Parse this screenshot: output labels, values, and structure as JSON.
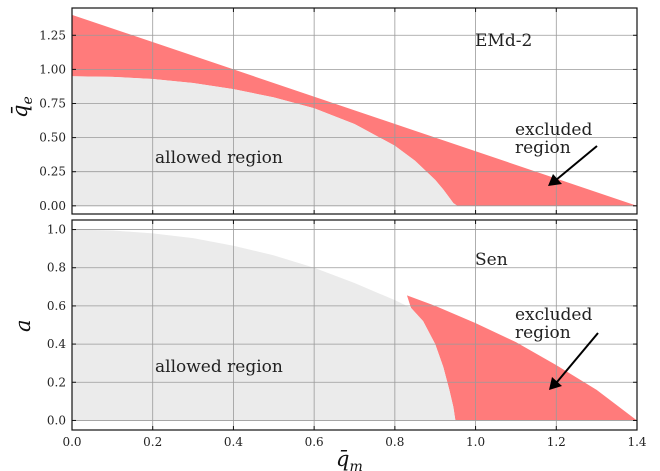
{
  "chart_data": [
    {
      "type": "area",
      "label": "EMd-2",
      "ylabel": "q̄",
      "ylabel_sub": "e",
      "xlim": [
        0,
        1.4
      ],
      "ylim": [
        -0.06,
        1.45
      ],
      "x_ticks": [
        0.0,
        0.2,
        0.4,
        0.6,
        0.8,
        1.0,
        1.2,
        1.4
      ],
      "y_ticks": [
        "0.00",
        "0.25",
        "0.50",
        "0.75",
        "1.00",
        "1.25"
      ],
      "y_tick_values": [
        0,
        0.25,
        0.5,
        0.75,
        1.0,
        1.25
      ],
      "grid": true,
      "series": [
        {
          "region": "allowed region",
          "color": "#ebebeb",
          "x": [
            0,
            0.1,
            0.2,
            0.3,
            0.4,
            0.5,
            0.6,
            0.7,
            0.8,
            0.85,
            0.9,
            0.92,
            0.935,
            0.945,
            0.955
          ],
          "y": [
            0.95,
            0.945,
            0.93,
            0.9,
            0.855,
            0.795,
            0.715,
            0.6,
            0.44,
            0.33,
            0.19,
            0.12,
            0.06,
            0.02,
            0.0
          ]
        },
        {
          "region": "excluded region",
          "color": "#ff7b7b",
          "x": [
            0,
            1.4
          ],
          "y": [
            1.4,
            0.0
          ]
        }
      ],
      "annotations": [
        "allowed region",
        "excluded",
        "region"
      ]
    },
    {
      "type": "area",
      "label": "Sen",
      "ylabel": "a",
      "xlabel": "q̄",
      "xlabel_sub": "m",
      "xlim": [
        0,
        1.4
      ],
      "ylim": [
        -0.05,
        1.05
      ],
      "x_ticks": [
        "0.0",
        "0.2",
        "0.4",
        "0.6",
        "0.8",
        "1.0",
        "1.2",
        "1.4"
      ],
      "x_tick_values": [
        0,
        0.2,
        0.4,
        0.6,
        0.8,
        1.0,
        1.2,
        1.4
      ],
      "y_ticks": [
        "0.0",
        "0.2",
        "0.4",
        "0.6",
        "0.8",
        "1.0"
      ],
      "y_tick_values": [
        0,
        0.2,
        0.4,
        0.6,
        0.8,
        1.0
      ],
      "grid": true,
      "series": [
        {
          "region": "allowed region",
          "color": "#ebebeb",
          "x": [
            0,
            0.1,
            0.2,
            0.3,
            0.4,
            0.5,
            0.6,
            0.7,
            0.8,
            0.84,
            0.87,
            0.9,
            0.92,
            0.935,
            0.945,
            0.95
          ],
          "y": [
            1.0,
            0.995,
            0.98,
            0.955,
            0.915,
            0.865,
            0.8,
            0.72,
            0.63,
            0.59,
            0.52,
            0.4,
            0.28,
            0.16,
            0.07,
            0.0
          ]
        },
        {
          "region": "excluded region",
          "color": "#ff7b7b",
          "x": [
            0.83,
            0.9,
            1.0,
            1.1,
            1.2,
            1.3,
            1.4
          ],
          "y": [
            0.655,
            0.6,
            0.51,
            0.41,
            0.29,
            0.16,
            0.0
          ]
        }
      ],
      "annotations": [
        "allowed region",
        "excluded",
        "region"
      ]
    }
  ]
}
